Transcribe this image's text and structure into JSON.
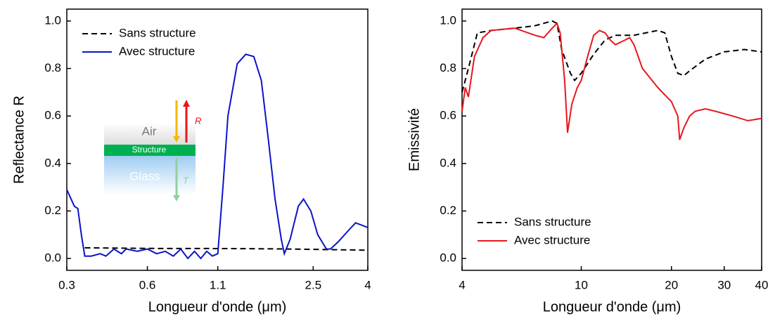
{
  "chart_data": [
    {
      "type": "line",
      "xlabel": "Longueur d'onde (μm)",
      "ylabel": "Reflectance R",
      "xscale": "log",
      "xlim": [
        0.3,
        4
      ],
      "xticks": [
        0.3,
        0.6,
        1.1,
        2.5,
        4
      ],
      "ylim": [
        -0.05,
        1.05
      ],
      "yticks": [
        {
          "value": 0,
          "label": "0.0"
        },
        0.2,
        0.4,
        0.6,
        0.8,
        {
          "value": 1,
          "label": "1.0"
        }
      ],
      "legend": "upper left",
      "annotations": [
        "Air",
        "Structure",
        "Glass",
        "R",
        "T"
      ],
      "series": [
        {
          "name": "Sans structure",
          "color": "#000000",
          "linestyle": "dashed",
          "x": [
            0.35,
            0.5,
            0.7,
            1.0,
            1.5,
            2.0,
            3.0,
            4.0
          ],
          "values": [
            0.045,
            0.043,
            0.042,
            0.042,
            0.041,
            0.04,
            0.037,
            0.035
          ]
        },
        {
          "name": "Avec structure",
          "color": "#0a14c8",
          "linestyle": "solid",
          "x": [
            0.3,
            0.32,
            0.33,
            0.34,
            0.35,
            0.37,
            0.4,
            0.42,
            0.45,
            0.48,
            0.5,
            0.55,
            0.6,
            0.65,
            0.7,
            0.75,
            0.8,
            0.85,
            0.9,
            0.95,
            1.0,
            1.05,
            1.1,
            1.15,
            1.2,
            1.3,
            1.4,
            1.5,
            1.6,
            1.7,
            1.8,
            1.9,
            1.95,
            2.05,
            2.2,
            2.3,
            2.45,
            2.6,
            2.8,
            2.9,
            3.1,
            3.4,
            3.6,
            3.8,
            4.0
          ],
          "values": [
            0.29,
            0.22,
            0.21,
            0.1,
            0.01,
            0.01,
            0.02,
            0.01,
            0.04,
            0.02,
            0.04,
            0.03,
            0.04,
            0.02,
            0.03,
            0.01,
            0.04,
            0.0,
            0.03,
            0.0,
            0.03,
            0.01,
            0.02,
            0.3,
            0.6,
            0.82,
            0.86,
            0.85,
            0.75,
            0.5,
            0.25,
            0.08,
            0.02,
            0.08,
            0.22,
            0.25,
            0.2,
            0.1,
            0.04,
            0.04,
            0.07,
            0.12,
            0.15,
            0.14,
            0.13
          ]
        }
      ]
    },
    {
      "type": "line",
      "xlabel": "Longueur d'onde (μm)",
      "ylabel": "Emissivité",
      "xscale": "log",
      "xlim": [
        4,
        40
      ],
      "xticks": [
        4,
        10,
        20,
        30,
        40
      ],
      "ylim": [
        -0.05,
        1.05
      ],
      "yticks": [
        {
          "value": 0,
          "label": "0.0"
        },
        0.2,
        0.4,
        0.6,
        0.8,
        {
          "value": 1,
          "label": "1.0"
        }
      ],
      "legend": "lower left",
      "series": [
        {
          "name": "Sans structure",
          "color": "#000000",
          "linestyle": "dashed",
          "x": [
            4,
            4.2,
            4.5,
            5,
            6,
            7,
            8,
            8.3,
            8.6,
            9.2,
            9.5,
            10,
            11,
            12,
            13,
            15,
            18,
            19,
            20,
            21,
            22,
            23,
            26,
            30,
            35,
            40
          ],
          "values": [
            0.7,
            0.8,
            0.95,
            0.96,
            0.97,
            0.98,
            1.0,
            0.99,
            0.88,
            0.78,
            0.75,
            0.78,
            0.86,
            0.92,
            0.94,
            0.94,
            0.96,
            0.95,
            0.85,
            0.78,
            0.77,
            0.79,
            0.84,
            0.87,
            0.88,
            0.87
          ]
        },
        {
          "name": "Avec structure",
          "color": "#e8161b",
          "linestyle": "solid",
          "x": [
            4,
            4.1,
            4.2,
            4.4,
            4.7,
            5,
            6,
            7,
            7.5,
            8,
            8.3,
            8.5,
            8.8,
            9.0,
            9.3,
            9.7,
            10,
            10.5,
            11,
            11.5,
            12,
            12.5,
            13,
            14,
            14.5,
            15,
            16,
            18,
            20,
            21,
            21.3,
            22,
            23,
            24,
            26,
            28,
            32,
            36,
            40
          ],
          "values": [
            0.62,
            0.72,
            0.68,
            0.85,
            0.93,
            0.96,
            0.97,
            0.94,
            0.93,
            0.97,
            0.99,
            0.95,
            0.75,
            0.53,
            0.65,
            0.72,
            0.75,
            0.85,
            0.94,
            0.96,
            0.95,
            0.92,
            0.9,
            0.92,
            0.93,
            0.9,
            0.8,
            0.72,
            0.66,
            0.6,
            0.5,
            0.55,
            0.6,
            0.62,
            0.63,
            0.62,
            0.6,
            0.58,
            0.59
          ]
        }
      ]
    }
  ]
}
